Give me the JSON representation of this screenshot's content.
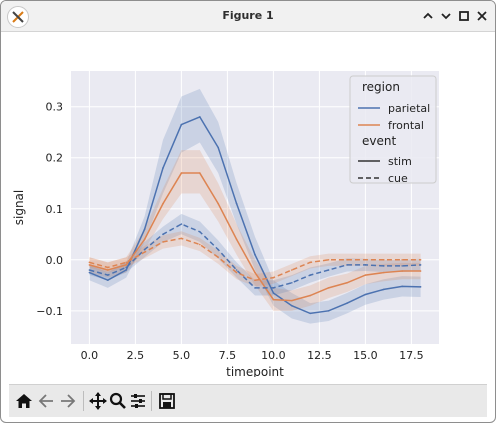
{
  "window": {
    "title": "Figure 1"
  },
  "toolbar": {
    "buttons": [
      {
        "icon": "home-icon"
      },
      {
        "icon": "back-icon"
      },
      {
        "icon": "forward-icon"
      },
      {
        "icon": "pan-icon"
      },
      {
        "icon": "zoom-icon"
      },
      {
        "icon": "configure-subplots-icon"
      },
      {
        "icon": "save-icon"
      }
    ]
  },
  "colors": {
    "parietal": "#4c72b0",
    "frontal": "#dd8452",
    "axes_bg": "#eaeaf2",
    "grid": "#ffffff"
  },
  "chart_data": {
    "type": "line",
    "xlabel": "timepoint",
    "ylabel": "signal",
    "xlim": [
      -1,
      19
    ],
    "ylim": [
      -0.165,
      0.37
    ],
    "xticks": [
      0.0,
      2.5,
      5.0,
      7.5,
      10.0,
      12.5,
      15.0,
      17.5
    ],
    "xtick_labels": [
      "0.0",
      "2.5",
      "5.0",
      "7.5",
      "10.0",
      "12.5",
      "15.0",
      "17.5"
    ],
    "yticks": [
      -0.1,
      0.0,
      0.1,
      0.2,
      0.3
    ],
    "ytick_labels": [
      "−0.1",
      "0.0",
      "0.1",
      "0.2",
      "0.3"
    ],
    "grid": true,
    "legend": {
      "position": "top-right",
      "hue_title": "region",
      "style_title": "event",
      "hue_entries": [
        "parietal",
        "frontal"
      ],
      "style_entries": [
        "stim",
        "cue"
      ]
    },
    "x": [
      0,
      1,
      2,
      3,
      4,
      5,
      6,
      7,
      8,
      9,
      10,
      11,
      12,
      13,
      14,
      15,
      16,
      17,
      18
    ],
    "series": [
      {
        "name": "parietal",
        "event": "stim",
        "values": [
          -0.025,
          -0.04,
          -0.02,
          0.06,
          0.18,
          0.265,
          0.28,
          0.22,
          0.11,
          0.01,
          -0.065,
          -0.09,
          -0.105,
          -0.1,
          -0.085,
          -0.068,
          -0.058,
          -0.052,
          -0.053
        ],
        "ci_low": [
          -0.04,
          -0.055,
          -0.035,
          0.035,
          0.13,
          0.21,
          0.23,
          0.17,
          0.07,
          -0.02,
          -0.09,
          -0.115,
          -0.125,
          -0.12,
          -0.105,
          -0.088,
          -0.078,
          -0.072,
          -0.073
        ],
        "ci_high": [
          -0.01,
          -0.025,
          -0.005,
          0.085,
          0.235,
          0.32,
          0.335,
          0.27,
          0.15,
          0.045,
          -0.04,
          -0.065,
          -0.085,
          -0.08,
          -0.065,
          -0.048,
          -0.038,
          -0.032,
          -0.033
        ]
      },
      {
        "name": "frontal",
        "event": "stim",
        "values": [
          -0.01,
          -0.02,
          -0.01,
          0.04,
          0.11,
          0.17,
          0.17,
          0.11,
          0.04,
          -0.025,
          -0.078,
          -0.08,
          -0.07,
          -0.055,
          -0.045,
          -0.03,
          -0.025,
          -0.022,
          -0.022
        ],
        "ci_low": [
          -0.025,
          -0.035,
          -0.025,
          0.02,
          0.08,
          0.13,
          0.13,
          0.075,
          0.01,
          -0.05,
          -0.1,
          -0.1,
          -0.09,
          -0.075,
          -0.063,
          -0.048,
          -0.042,
          -0.038,
          -0.038
        ],
        "ci_high": [
          0.005,
          -0.005,
          0.005,
          0.06,
          0.14,
          0.215,
          0.215,
          0.15,
          0.07,
          0.0,
          -0.055,
          -0.06,
          -0.05,
          -0.035,
          -0.027,
          -0.012,
          -0.008,
          -0.006,
          -0.006
        ]
      },
      {
        "name": "parietal",
        "event": "cue",
        "values": [
          -0.02,
          -0.03,
          -0.015,
          0.02,
          0.05,
          0.07,
          0.055,
          0.02,
          -0.02,
          -0.055,
          -0.055,
          -0.045,
          -0.03,
          -0.02,
          -0.01,
          -0.01,
          -0.012,
          -0.012,
          -0.01
        ],
        "ci_low": [
          -0.03,
          -0.04,
          -0.025,
          0.005,
          0.035,
          0.05,
          0.035,
          0.002,
          -0.035,
          -0.07,
          -0.07,
          -0.06,
          -0.045,
          -0.033,
          -0.023,
          -0.022,
          -0.024,
          -0.024,
          -0.022
        ],
        "ci_high": [
          -0.01,
          -0.02,
          -0.005,
          0.035,
          0.065,
          0.09,
          0.075,
          0.038,
          -0.005,
          -0.04,
          -0.04,
          -0.03,
          -0.015,
          -0.007,
          0.003,
          0.002,
          0.0,
          0.0,
          0.002
        ]
      },
      {
        "name": "frontal",
        "event": "cue",
        "values": [
          -0.005,
          -0.015,
          -0.005,
          0.015,
          0.035,
          0.042,
          0.03,
          0.005,
          -0.025,
          -0.04,
          -0.035,
          -0.02,
          -0.005,
          0.0,
          0.0,
          0.0,
          0.0,
          0.0,
          0.0
        ],
        "ci_low": [
          -0.015,
          -0.025,
          -0.015,
          0.003,
          0.022,
          0.028,
          0.017,
          -0.008,
          -0.038,
          -0.052,
          -0.047,
          -0.032,
          -0.017,
          -0.012,
          -0.012,
          -0.012,
          -0.012,
          -0.012,
          -0.012
        ],
        "ci_high": [
          0.005,
          -0.005,
          0.005,
          0.027,
          0.048,
          0.056,
          0.043,
          0.018,
          -0.012,
          -0.028,
          -0.023,
          -0.008,
          0.007,
          0.012,
          0.012,
          0.012,
          0.012,
          0.012,
          0.012
        ]
      }
    ]
  }
}
